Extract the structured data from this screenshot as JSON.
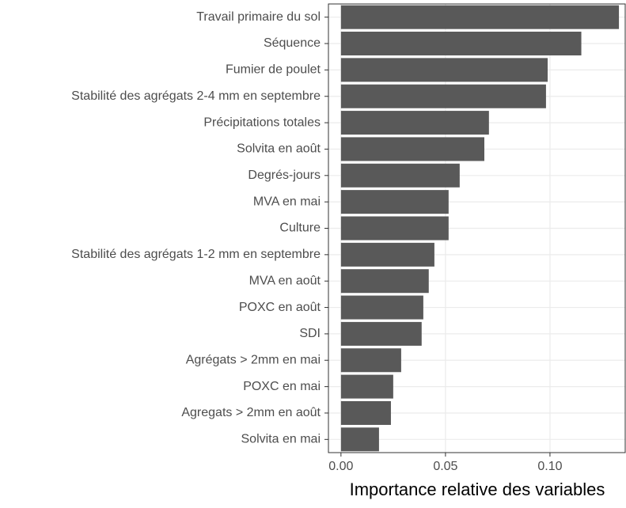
{
  "chart_data": {
    "type": "barh",
    "xlabel": "Importance relative des variables",
    "categories": [
      "Travail primaire du sol",
      "Séquence",
      "Fumier de poulet",
      "Stabilité des agrégats 2-4 mm en septembre",
      "Précipitations totales",
      "Solvita en août",
      "Degrés-jours",
      "MVA en mai",
      "Culture",
      "Stabilité des agrégats 1-2 mm en septembre",
      "MVA en août",
      "POXC en août",
      "SDI",
      "Agrégats > 2mm en mai",
      "POXC en mai",
      "Agregats > 2mm en août",
      "Solvita en mai"
    ],
    "values": [
      0.133,
      0.115,
      0.0989,
      0.0981,
      0.0708,
      0.0686,
      0.0568,
      0.0515,
      0.0515,
      0.0447,
      0.042,
      0.0394,
      0.0386,
      0.0288,
      0.025,
      0.0239,
      0.0182
    ],
    "color": "#595959",
    "xlim": [
      -0.006,
      0.136
    ],
    "xticks": [
      {
        "value": 0,
        "label": "0.00"
      },
      {
        "value": 0.05,
        "label": "0.05"
      },
      {
        "value": 0.1,
        "label": "0.10"
      }
    ],
    "grid": true
  }
}
